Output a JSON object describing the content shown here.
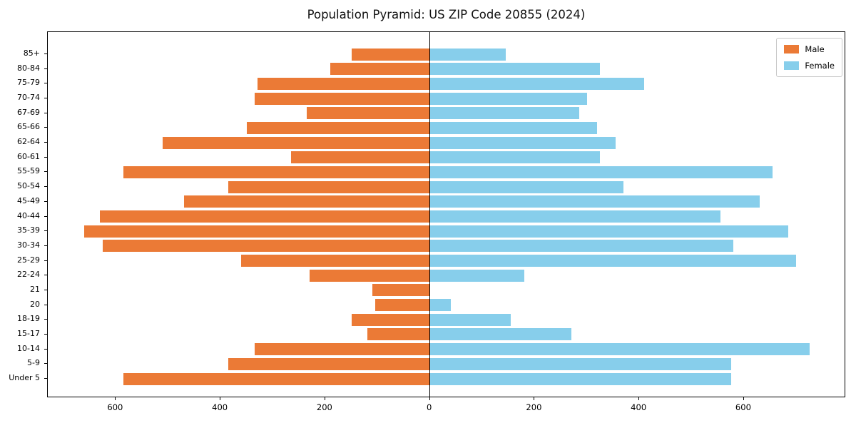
{
  "chart_data": {
    "type": "bar",
    "variant": "population-pyramid",
    "title": "Population Pyramid: US ZIP Code 20855 (2024)",
    "categories": [
      "85+",
      "80-84",
      "75-79",
      "70-74",
      "67-69",
      "65-66",
      "62-64",
      "60-61",
      "55-59",
      "50-54",
      "45-49",
      "40-44",
      "35-39",
      "30-34",
      "25-29",
      "22-24",
      "21",
      "20",
      "18-19",
      "15-17",
      "10-14",
      "5-9",
      "Under 5"
    ],
    "series": [
      {
        "name": "Male",
        "direction": "left",
        "color": "#EB7A36",
        "values": [
          150,
          190,
          330,
          335,
          235,
          350,
          510,
          265,
          585,
          385,
          470,
          630,
          660,
          625,
          360,
          230,
          110,
          105,
          150,
          120,
          335,
          385,
          585
        ]
      },
      {
        "name": "Female",
        "direction": "right",
        "color": "#87CEEB",
        "values": [
          145,
          325,
          410,
          300,
          285,
          320,
          355,
          325,
          655,
          370,
          630,
          555,
          685,
          580,
          700,
          180,
          0,
          40,
          155,
          270,
          725,
          575,
          575
        ]
      }
    ],
    "x_tick_positions": [
      -600,
      -400,
      -200,
      0,
      200,
      400,
      600
    ],
    "x_tick_labels": [
      "600",
      "400",
      "200",
      "0",
      "200",
      "400",
      "600"
    ],
    "xlim_left": 730,
    "xlim_right": 795,
    "legend": [
      "Male",
      "Female"
    ],
    "legend_position": "upper right",
    "grid": false
  }
}
